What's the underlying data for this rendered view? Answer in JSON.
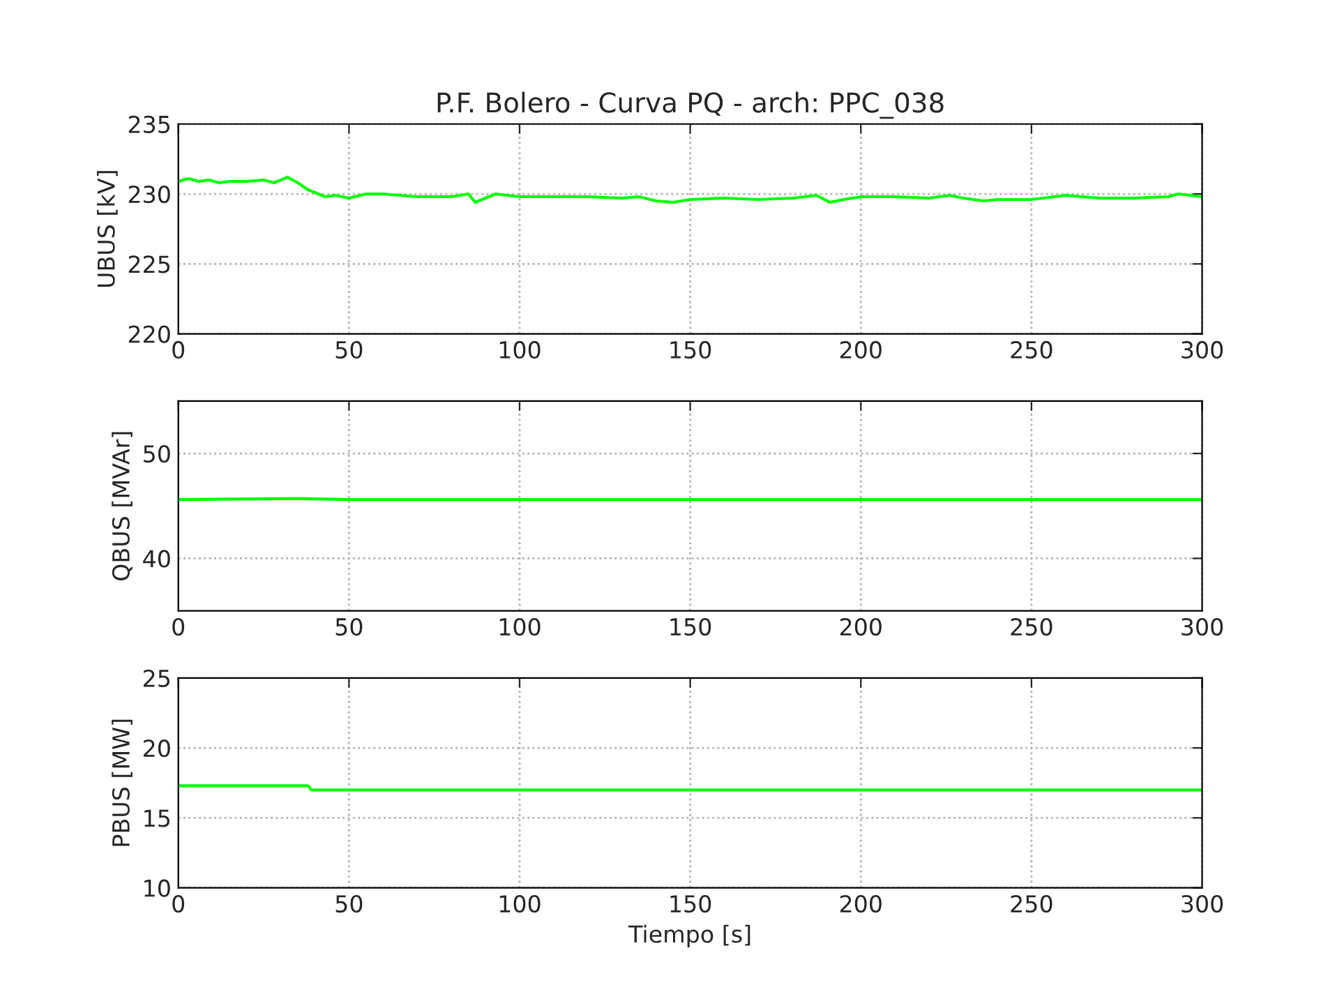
{
  "chart_data": [
    {
      "type": "line",
      "title": "P.F. Bolero - Curva PQ - arch: PPC_038",
      "ylabel": "UBUS [kV]",
      "xlim": [
        0,
        300
      ],
      "xticks": [
        0,
        50,
        100,
        150,
        200,
        250,
        300
      ],
      "ylim": [
        220,
        235
      ],
      "yticks": [
        220,
        225,
        230,
        235
      ],
      "grid": true,
      "line_style": "solid",
      "series": [
        {
          "color": "#00ff00",
          "x": [
            0,
            3,
            6,
            9,
            12,
            15,
            20,
            25,
            28,
            32,
            35,
            38,
            41,
            43,
            46,
            50,
            55,
            60,
            70,
            80,
            85,
            87,
            90,
            93,
            100,
            110,
            120,
            130,
            135,
            140,
            145,
            150,
            160,
            170,
            180,
            187,
            191,
            195,
            200,
            210,
            220,
            226,
            230,
            236,
            240,
            250,
            260,
            270,
            280,
            290,
            293,
            300
          ],
          "values": [
            230.9,
            231.1,
            230.9,
            231.0,
            230.8,
            230.9,
            230.9,
            231.0,
            230.8,
            231.2,
            230.8,
            230.3,
            230.0,
            229.8,
            229.9,
            229.7,
            230.0,
            230.0,
            229.8,
            229.8,
            230.0,
            229.4,
            229.7,
            230.0,
            229.8,
            229.8,
            229.8,
            229.7,
            229.8,
            229.5,
            229.4,
            229.6,
            229.7,
            229.6,
            229.7,
            229.9,
            229.4,
            229.6,
            229.8,
            229.8,
            229.7,
            229.9,
            229.7,
            229.5,
            229.6,
            229.6,
            229.9,
            229.7,
            229.7,
            229.8,
            230.0,
            229.8
          ]
        }
      ]
    },
    {
      "type": "line",
      "ylabel": "QBUS [MVAr]",
      "xlim": [
        0,
        300
      ],
      "xticks": [
        0,
        50,
        100,
        150,
        200,
        250,
        300
      ],
      "ylim": [
        35,
        55
      ],
      "yticks": [
        40,
        50
      ],
      "grid": true,
      "line_style": "solid",
      "series": [
        {
          "color": "#00ff00",
          "x": [
            0,
            35,
            50,
            100,
            150,
            200,
            250,
            300
          ],
          "values": [
            45.6,
            45.7,
            45.6,
            45.6,
            45.6,
            45.6,
            45.6,
            45.6
          ]
        }
      ]
    },
    {
      "type": "line",
      "ylabel": "PBUS [MW]",
      "xlabel": "Tiempo [s]",
      "xlim": [
        0,
        300
      ],
      "xticks": [
        0,
        50,
        100,
        150,
        200,
        250,
        300
      ],
      "ylim": [
        10,
        25
      ],
      "yticks": [
        10,
        15,
        20,
        25
      ],
      "grid": true,
      "line_style": "solid",
      "series": [
        {
          "color": "#00ff00",
          "x": [
            0,
            20,
            38,
            39,
            50,
            100,
            150,
            200,
            250,
            300
          ],
          "values": [
            17.3,
            17.3,
            17.3,
            17.0,
            17.0,
            17.0,
            17.0,
            17.0,
            17.0,
            17.0
          ]
        }
      ]
    }
  ]
}
